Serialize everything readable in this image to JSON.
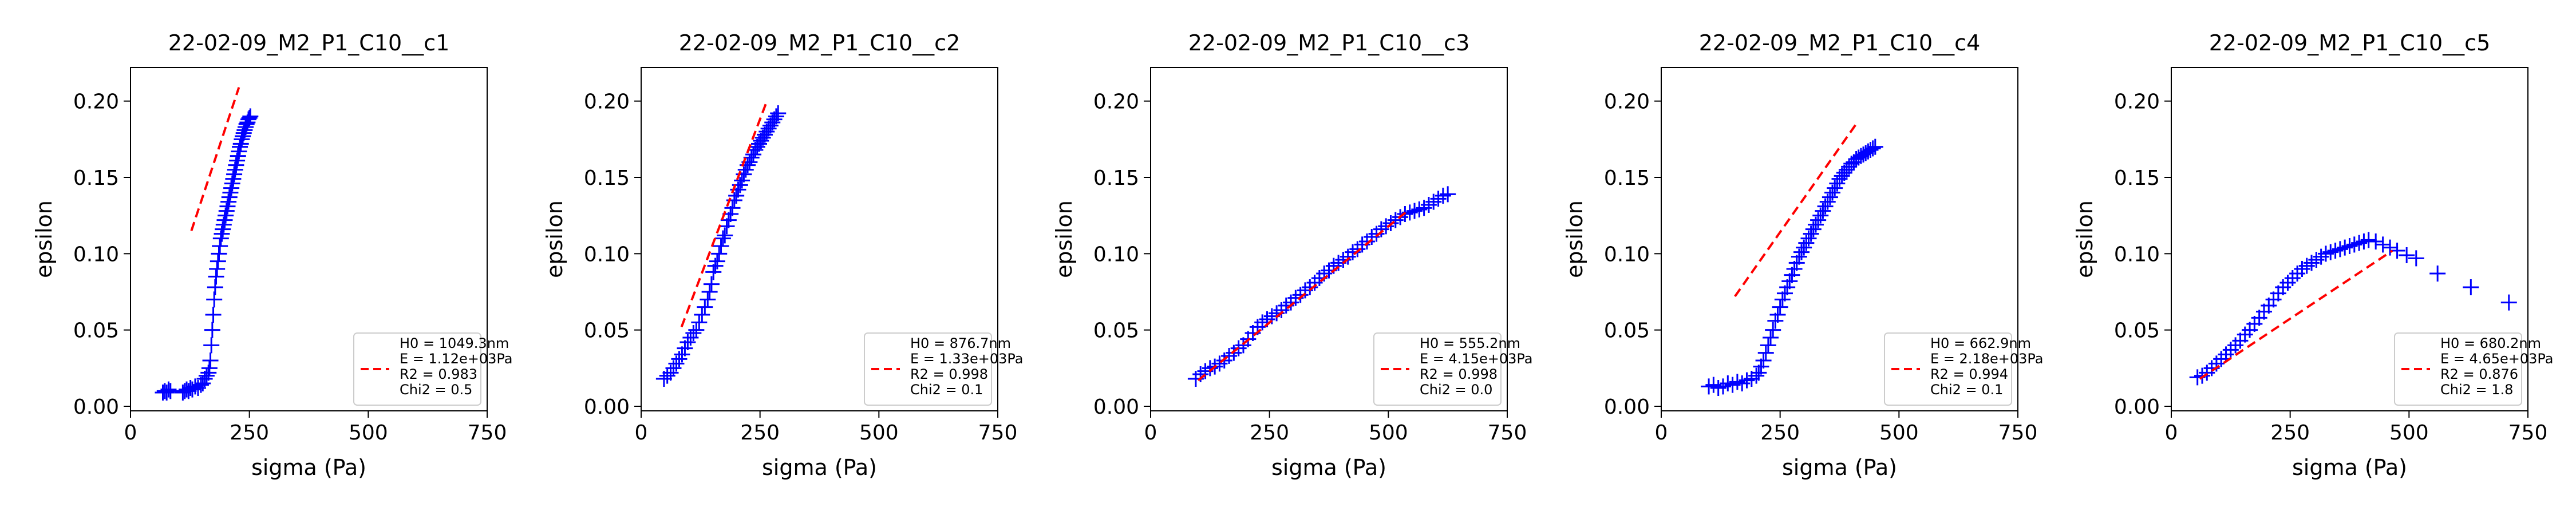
{
  "colors": {
    "data": "#0000ff",
    "fit": "#ff0000",
    "axis": "#000000"
  },
  "chart_data": [
    {
      "type": "scatter",
      "title": "22-02-09_M2_P1_C10__c1",
      "xlabel": "sigma (Pa)",
      "ylabel": "epsilon",
      "xlim": [
        0,
        750
      ],
      "ylim": [
        -0.003,
        0.222
      ],
      "xticks": [
        "0",
        "250",
        "500",
        "750"
      ],
      "yticks": [
        "0.00",
        "0.05",
        "0.10",
        "0.15",
        "0.20"
      ],
      "grid": false,
      "legend_position": "lower right",
      "legend": [
        "H0 = 1049.3nm",
        "E = 1.12e+03Pa",
        "R2 = 0.983",
        "Chi2 = 0.5"
      ],
      "series": [
        {
          "kind": "points",
          "x": [
            68,
            72,
            76,
            80,
            84,
            110,
            114,
            118,
            122,
            126,
            130,
            136,
            142,
            148,
            152,
            156,
            160,
            164,
            166,
            168,
            170,
            172,
            174,
            176,
            178,
            180,
            182,
            184,
            186,
            188,
            190,
            192,
            194,
            196,
            198,
            200,
            202,
            204,
            206,
            208,
            210,
            212,
            214,
            216,
            218,
            220,
            222,
            224,
            226,
            228,
            230,
            232,
            234,
            236,
            238,
            240,
            242,
            244,
            246,
            248,
            250,
            252
          ],
          "y": [
            0.009,
            0.01,
            0.009,
            0.011,
            0.01,
            0.009,
            0.01,
            0.011,
            0.01,
            0.012,
            0.011,
            0.013,
            0.012,
            0.014,
            0.015,
            0.018,
            0.02,
            0.022,
            0.025,
            0.03,
            0.04,
            0.05,
            0.06,
            0.07,
            0.078,
            0.085,
            0.09,
            0.095,
            0.1,
            0.105,
            0.11,
            0.113,
            0.116,
            0.119,
            0.122,
            0.125,
            0.128,
            0.131,
            0.134,
            0.137,
            0.14,
            0.143,
            0.146,
            0.149,
            0.152,
            0.155,
            0.158,
            0.161,
            0.164,
            0.167,
            0.17,
            0.172,
            0.175,
            0.177,
            0.179,
            0.181,
            0.183,
            0.185,
            0.186,
            0.188,
            0.189,
            0.19
          ]
        },
        {
          "kind": "fit",
          "x": [
            128,
            228
          ],
          "y": [
            0.115,
            0.209
          ]
        }
      ]
    },
    {
      "type": "scatter",
      "title": "22-02-09_M2_P1_C10__c2",
      "xlabel": "sigma (Pa)",
      "ylabel": "epsilon",
      "xlim": [
        0,
        750
      ],
      "ylim": [
        -0.003,
        0.222
      ],
      "xticks": [
        "0",
        "250",
        "500",
        "750"
      ],
      "yticks": [
        "0.00",
        "0.05",
        "0.10",
        "0.15",
        "0.20"
      ],
      "grid": false,
      "legend_position": "lower right",
      "legend": [
        "H0 = 876.7nm",
        "E = 1.33e+03Pa",
        "R2 = 0.998",
        "Chi2 = 0.1"
      ],
      "series": [
        {
          "kind": "points",
          "x": [
            48,
            55,
            62,
            68,
            74,
            80,
            86,
            92,
            98,
            104,
            110,
            116,
            122,
            128,
            134,
            140,
            144,
            148,
            152,
            156,
            160,
            164,
            168,
            172,
            176,
            180,
            184,
            188,
            192,
            196,
            200,
            204,
            208,
            212,
            216,
            220,
            224,
            228,
            232,
            236,
            240,
            244,
            248,
            252,
            256,
            260,
            264,
            268,
            272,
            276,
            280,
            284,
            288
          ],
          "y": [
            0.018,
            0.02,
            0.022,
            0.025,
            0.028,
            0.031,
            0.034,
            0.038,
            0.042,
            0.045,
            0.048,
            0.05,
            0.055,
            0.06,
            0.065,
            0.07,
            0.075,
            0.08,
            0.088,
            0.092,
            0.095,
            0.1,
            0.105,
            0.11,
            0.112,
            0.118,
            0.122,
            0.126,
            0.13,
            0.135,
            0.138,
            0.142,
            0.145,
            0.148,
            0.152,
            0.155,
            0.158,
            0.16,
            0.163,
            0.165,
            0.168,
            0.17,
            0.172,
            0.174,
            0.176,
            0.178,
            0.18,
            0.182,
            0.184,
            0.186,
            0.188,
            0.19,
            0.192
          ]
        },
        {
          "kind": "fit",
          "x": [
            85,
            262
          ],
          "y": [
            0.052,
            0.198
          ]
        }
      ]
    },
    {
      "type": "scatter",
      "title": "22-02-09_M2_P1_C10__c3",
      "xlabel": "sigma (Pa)",
      "ylabel": "epsilon",
      "xlim": [
        0,
        750
      ],
      "ylim": [
        -0.003,
        0.222
      ],
      "xticks": [
        "0",
        "250",
        "500",
        "750"
      ],
      "yticks": [
        "0.00",
        "0.05",
        "0.10",
        "0.15",
        "0.20"
      ],
      "grid": false,
      "legend_position": "lower right",
      "legend": [
        "H0 = 555.2nm",
        "E = 4.15e+03Pa",
        "R2 = 0.998",
        "Chi2 = 0.0"
      ],
      "series": [
        {
          "kind": "points",
          "x": [
            95,
            105,
            115,
            125,
            135,
            145,
            155,
            165,
            175,
            185,
            195,
            205,
            215,
            225,
            235,
            245,
            255,
            265,
            275,
            285,
            295,
            305,
            315,
            325,
            335,
            345,
            355,
            365,
            375,
            385,
            395,
            405,
            415,
            425,
            435,
            445,
            455,
            465,
            475,
            485,
            495,
            505,
            515,
            525,
            535,
            545,
            555,
            565,
            575,
            585,
            595,
            605,
            615,
            625
          ],
          "y": [
            0.018,
            0.021,
            0.023,
            0.025,
            0.026,
            0.028,
            0.03,
            0.033,
            0.035,
            0.038,
            0.04,
            0.044,
            0.048,
            0.052,
            0.055,
            0.057,
            0.059,
            0.061,
            0.063,
            0.066,
            0.068,
            0.071,
            0.073,
            0.076,
            0.078,
            0.081,
            0.084,
            0.087,
            0.089,
            0.092,
            0.094,
            0.096,
            0.098,
            0.101,
            0.103,
            0.106,
            0.108,
            0.111,
            0.113,
            0.116,
            0.118,
            0.12,
            0.122,
            0.124,
            0.126,
            0.127,
            0.128,
            0.129,
            0.13,
            0.132,
            0.134,
            0.136,
            0.138,
            0.139
          ]
        },
        {
          "kind": "fit",
          "x": [
            100,
            540
          ],
          "y": [
            0.017,
            0.128
          ]
        }
      ]
    },
    {
      "type": "scatter",
      "title": "22-02-09_M2_P1_C10__c4",
      "xlabel": "sigma (Pa)",
      "ylabel": "epsilon",
      "xlim": [
        0,
        750
      ],
      "ylim": [
        -0.003,
        0.222
      ],
      "xticks": [
        "0",
        "250",
        "500",
        "750"
      ],
      "yticks": [
        "0.00",
        "0.05",
        "0.10",
        "0.15",
        "0.20"
      ],
      "grid": false,
      "legend_position": "lower right",
      "legend": [
        "H0 = 662.9nm",
        "E = 2.18e+03Pa",
        "R2 = 0.994",
        "Chi2 = 0.1"
      ],
      "series": [
        {
          "kind": "points",
          "x": [
            100,
            110,
            120,
            130,
            140,
            150,
            160,
            170,
            180,
            190,
            200,
            205,
            210,
            215,
            220,
            225,
            230,
            235,
            240,
            245,
            250,
            255,
            260,
            265,
            270,
            275,
            280,
            285,
            290,
            295,
            300,
            305,
            310,
            315,
            320,
            325,
            330,
            335,
            340,
            345,
            350,
            355,
            360,
            365,
            370,
            375,
            380,
            385,
            390,
            395,
            400,
            405,
            410,
            415,
            420,
            425,
            430,
            435,
            440,
            445,
            450
          ],
          "y": [
            0.013,
            0.014,
            0.012,
            0.013,
            0.015,
            0.014,
            0.016,
            0.015,
            0.017,
            0.018,
            0.02,
            0.022,
            0.026,
            0.03,
            0.035,
            0.04,
            0.045,
            0.05,
            0.056,
            0.06,
            0.065,
            0.07,
            0.074,
            0.078,
            0.082,
            0.086,
            0.09,
            0.094,
            0.098,
            0.101,
            0.104,
            0.107,
            0.11,
            0.113,
            0.116,
            0.119,
            0.122,
            0.125,
            0.128,
            0.131,
            0.134,
            0.137,
            0.14,
            0.143,
            0.146,
            0.149,
            0.151,
            0.153,
            0.155,
            0.157,
            0.159,
            0.16,
            0.162,
            0.163,
            0.164,
            0.165,
            0.166,
            0.167,
            0.168,
            0.169,
            0.17
          ]
        },
        {
          "kind": "fit",
          "x": [
            155,
            410
          ],
          "y": [
            0.072,
            0.185
          ]
        }
      ]
    },
    {
      "type": "scatter",
      "title": "22-02-09_M2_P1_C10__c5",
      "xlabel": "sigma (Pa)",
      "ylabel": "epsilon",
      "xlim": [
        0,
        750
      ],
      "ylim": [
        -0.003,
        0.222
      ],
      "xticks": [
        "0",
        "250",
        "500",
        "750"
      ],
      "yticks": [
        "0.00",
        "0.05",
        "0.10",
        "0.15",
        "0.20"
      ],
      "grid": false,
      "legend_position": "lower right",
      "legend": [
        "H0 = 680.2nm",
        "E = 4.65e+03Pa",
        "R2 = 0.876",
        "Chi2 = 1.8"
      ],
      "series": [
        {
          "kind": "points",
          "x": [
            55,
            65,
            75,
            85,
            95,
            105,
            115,
            125,
            135,
            145,
            155,
            165,
            175,
            185,
            195,
            205,
            215,
            225,
            235,
            245,
            255,
            265,
            275,
            285,
            295,
            305,
            315,
            325,
            335,
            345,
            355,
            365,
            375,
            385,
            395,
            405,
            415,
            430,
            445,
            460,
            475,
            495,
            515,
            560,
            630,
            710
          ],
          "y": [
            0.019,
            0.02,
            0.022,
            0.025,
            0.028,
            0.031,
            0.034,
            0.037,
            0.04,
            0.043,
            0.047,
            0.05,
            0.054,
            0.058,
            0.062,
            0.066,
            0.07,
            0.074,
            0.078,
            0.081,
            0.084,
            0.087,
            0.09,
            0.092,
            0.094,
            0.096,
            0.098,
            0.1,
            0.101,
            0.102,
            0.103,
            0.104,
            0.105,
            0.106,
            0.107,
            0.108,
            0.109,
            0.108,
            0.106,
            0.104,
            0.102,
            0.099,
            0.097,
            0.087,
            0.078,
            0.068
          ]
        },
        {
          "kind": "fit",
          "x": [
            60,
            465
          ],
          "y": [
            0.018,
            0.102
          ]
        }
      ]
    }
  ]
}
